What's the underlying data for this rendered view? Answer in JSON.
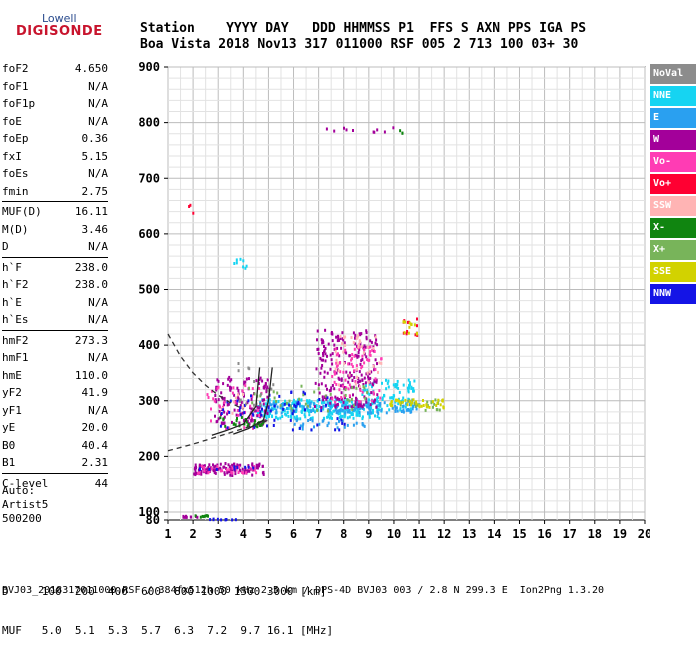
{
  "logo": {
    "brand_top": "Lowell",
    "brand_bottom": "DIGISONDE"
  },
  "header": {
    "line1": "Station    YYYY DAY   DDD HHMMSS P1  FFS S AXN PPS IGA PS",
    "line2": "Boa Vista 2018 Nov13 317 011000 RSF 005 2 713 100 03+ 30"
  },
  "parameters": [
    {
      "name": "foF2",
      "value": "4.650"
    },
    {
      "name": "foF1",
      "value": "N/A"
    },
    {
      "name": "foF1p",
      "value": "N/A"
    },
    {
      "name": "foE",
      "value": "N/A"
    },
    {
      "name": "foEp",
      "value": "0.36"
    },
    {
      "name": "fxI",
      "value": "5.15"
    },
    {
      "name": "foEs",
      "value": "N/A"
    },
    {
      "name": "fmin",
      "value": "2.75"
    },
    {
      "name": "MUF(D)",
      "value": "16.11"
    },
    {
      "name": "M(D)",
      "value": "3.46"
    },
    {
      "name": "D",
      "value": "N/A"
    },
    {
      "name": "h`F",
      "value": "238.0"
    },
    {
      "name": "h`F2",
      "value": "238.0"
    },
    {
      "name": "h`E",
      "value": "N/A"
    },
    {
      "name": "h`Es",
      "value": "N/A"
    },
    {
      "name": "hmF2",
      "value": "273.3"
    },
    {
      "name": "hmF1",
      "value": "N/A"
    },
    {
      "name": "hmE",
      "value": "110.0"
    },
    {
      "name": "yF2",
      "value": "41.9"
    },
    {
      "name": "yF1",
      "value": "N/A"
    },
    {
      "name": "yE",
      "value": "20.0"
    },
    {
      "name": "B0",
      "value": "40.4"
    },
    {
      "name": "B1",
      "value": "2.31"
    },
    {
      "name": "C-level",
      "value": "44"
    }
  ],
  "auto_block": {
    "line1": "Auto:",
    "line2": "Artist5",
    "line3": "500200"
  },
  "legend": [
    {
      "label": "NoVal",
      "color": "#8c8c8c"
    },
    {
      "label": "NNE",
      "color": "#16d4f2"
    },
    {
      "label": "E",
      "color": "#2aa0f0"
    },
    {
      "label": "W",
      "color": "#a3009a"
    },
    {
      "label": "Vo-",
      "color": "#ff3cb4"
    },
    {
      "label": "Vo+",
      "color": "#ff0032"
    },
    {
      "label": "SSW",
      "color": "#ffb4b4"
    },
    {
      "label": "X-",
      "color": "#108510"
    },
    {
      "label": "X+",
      "color": "#78b45a"
    },
    {
      "label": "SSE",
      "color": "#d2d200"
    },
    {
      "label": "NNW",
      "color": "#1414e6"
    }
  ],
  "bottom_table": {
    "line1": "D     100  200  400  600  800 1000 1500 3000 [km]",
    "line2": "MUF   5.0  5.1  5.3  5.7  6.3  7.2  9.7 16.1 [MHz]"
  },
  "footer": "BVJ03_2018317011000.RSF / 384fx512h 50 kHz 2.5 km / DPS-4D BVJ03 003 / 2.8 N 299.3 E  Ion2Png 1.3.20",
  "chart_data": {
    "type": "scatter",
    "title": "",
    "xlabel": "",
    "ylabel": "",
    "xlim": [
      1,
      20
    ],
    "ylim": [
      80,
      900
    ],
    "x_ticks": [
      1,
      2,
      3,
      4,
      5,
      6,
      7,
      8,
      9,
      10,
      11,
      12,
      13,
      14,
      15,
      16,
      17,
      18,
      19,
      20
    ],
    "y_ticks": [
      80,
      100,
      200,
      300,
      400,
      500,
      600,
      700,
      800,
      900
    ],
    "grid": true,
    "series": [
      {
        "name": "NNE",
        "color": "#16d4f2",
        "clusters": [
          {
            "x": [
              4.5,
              9.5
            ],
            "y": [
              270,
              305
            ],
            "n": 260
          },
          {
            "x": [
              8.5,
              10.8
            ],
            "y": [
              285,
              340
            ],
            "n": 90
          },
          {
            "x": [
              3.6,
              4.5
            ],
            "y": [
              540,
              560
            ],
            "n": 8
          }
        ]
      },
      {
        "name": "E",
        "color": "#2aa0f0",
        "clusters": [
          {
            "x": [
              4.8,
              11.0
            ],
            "y": [
              280,
              300
            ],
            "n": 140
          },
          {
            "x": [
              6.0,
              9.0
            ],
            "y": [
              250,
              270
            ],
            "n": 30
          }
        ]
      },
      {
        "name": "W",
        "color": "#a3009a",
        "clusters": [
          {
            "x": [
              2.8,
              5.0
            ],
            "y": [
              260,
              345
            ],
            "n": 130
          },
          {
            "x": [
              6.8,
              9.3
            ],
            "y": [
              290,
              430
            ],
            "n": 220
          },
          {
            "x": [
              2.0,
              4.8
            ],
            "y": [
              168,
              190
            ],
            "n": 120
          },
          {
            "x": [
              1.5,
              2.2
            ],
            "y": [
              90,
              95
            ],
            "n": 10
          },
          {
            "x": [
              6.8,
              10.0
            ],
            "y": [
              785,
              795
            ],
            "n": 10
          }
        ]
      },
      {
        "name": "Vo-",
        "color": "#ff3cb4",
        "clusters": [
          {
            "x": [
              7.5,
              9.5
            ],
            "y": [
              300,
              400
            ],
            "n": 70
          },
          {
            "x": [
              2.5,
              4.8
            ],
            "y": [
              250,
              330
            ],
            "n": 40
          },
          {
            "x": [
              2.0,
              4.5
            ],
            "y": [
              172,
              185
            ],
            "n": 30
          }
        ]
      },
      {
        "name": "Vo+",
        "color": "#ff0032",
        "clusters": [
          {
            "x": [
              10.3,
              10.9
            ],
            "y": [
              420,
              450
            ],
            "n": 12
          },
          {
            "x": [
              1.8,
              2.0
            ],
            "y": [
              630,
              660
            ],
            "n": 3
          }
        ]
      },
      {
        "name": "SSW",
        "color": "#ffb4b4",
        "clusters": [
          {
            "x": [
              7.5,
              9.5
            ],
            "y": [
              320,
              420
            ],
            "n": 40
          },
          {
            "x": [
              2.8,
              4.0
            ],
            "y": [
              280,
              320
            ],
            "n": 10
          }
        ]
      },
      {
        "name": "X-",
        "color": "#108510",
        "clusters": [
          {
            "x": [
              3.0,
              4.8
            ],
            "y": [
              255,
              275
            ],
            "n": 30
          },
          {
            "x": [
              2.0,
              2.6
            ],
            "y": [
              90,
              95
            ],
            "n": 8
          },
          {
            "x": [
              10.2,
              10.4
            ],
            "y": [
              780,
              790
            ],
            "n": 3
          }
        ]
      },
      {
        "name": "X+",
        "color": "#78b45a",
        "clusters": [
          {
            "x": [
              4.0,
              9.0
            ],
            "y": [
              280,
              330
            ],
            "n": 40
          },
          {
            "x": [
              10.2,
              11.8
            ],
            "y": [
              285,
              305
            ],
            "n": 25
          }
        ]
      },
      {
        "name": "SSE",
        "color": "#d2d200",
        "clusters": [
          {
            "x": [
              9.8,
              12.0
            ],
            "y": [
              290,
              305
            ],
            "n": 40
          },
          {
            "x": [
              10.2,
              10.9
            ],
            "y": [
              420,
              445
            ],
            "n": 12
          }
        ]
      },
      {
        "name": "NNW",
        "color": "#1414e6",
        "clusters": [
          {
            "x": [
              3.0,
              8.0
            ],
            "y": [
              250,
              320
            ],
            "n": 60
          },
          {
            "x": [
              2.0,
              4.5
            ],
            "y": [
              176,
              184
            ],
            "n": 10
          },
          {
            "x": [
              2.5,
              4.0
            ],
            "y": [
              82,
              86
            ],
            "n": 10
          }
        ]
      },
      {
        "name": "NoVal",
        "color": "#8c8c8c",
        "clusters": [
          {
            "x": [
              3.5,
              5.2
            ],
            "y": [
              290,
              380
            ],
            "n": 15
          }
        ]
      }
    ],
    "curves": [
      {
        "name": "O-trace",
        "style": "solid",
        "color": "#222222",
        "x": [
          2.75,
          3.3,
          4.0,
          4.5,
          4.65
        ],
        "y": [
          238,
          246,
          258,
          290,
          360
        ]
      },
      {
        "name": "X-trace",
        "style": "solid",
        "color": "#222222",
        "x": [
          3.6,
          4.2,
          4.8,
          5.0,
          5.15
        ],
        "y": [
          240,
          250,
          265,
          300,
          360
        ]
      },
      {
        "name": "MUF-low",
        "style": "dashed",
        "color": "#333333",
        "x": [
          1.0,
          2.0,
          3.0,
          4.0,
          5.0
        ],
        "y": [
          210,
          222,
          236,
          250,
          265
        ]
      },
      {
        "name": "MUF-high",
        "style": "dashed",
        "color": "#333333",
        "x": [
          1.0,
          1.5,
          2.0,
          2.5,
          3.0,
          3.5,
          4.0
        ],
        "y": [
          420,
          380,
          350,
          328,
          310,
          296,
          285
        ]
      }
    ]
  }
}
